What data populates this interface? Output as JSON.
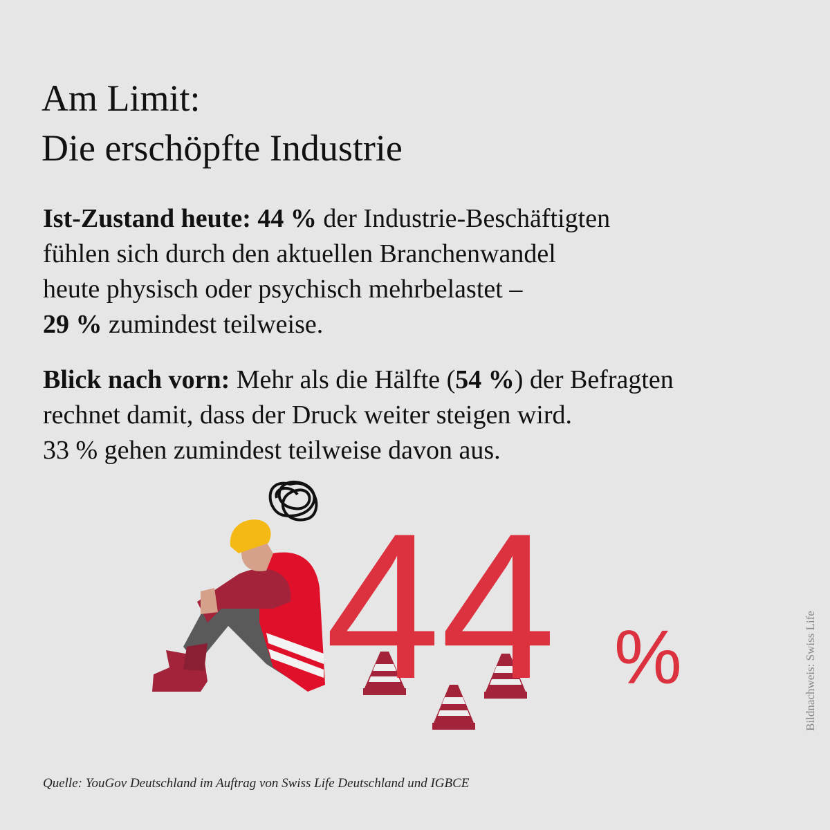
{
  "header": {
    "title": [
      "Am Limit:",
      "Die erschöpfte Industrie"
    ]
  },
  "paragraphs": [
    {
      "lines": [
        [
          {
            "text": "Ist-Zustand heute: 44 %",
            "bold": true
          },
          {
            "text": " der Industrie-Beschäftigten"
          }
        ],
        [
          {
            "text": "fühlen sich durch den aktuellen Branchenwandel"
          }
        ],
        [
          {
            "text": "heute physisch oder psychisch mehrbelastet –"
          }
        ],
        [
          {
            "text": "29 %",
            "bold": true
          },
          {
            "text": " zumindest teilweise."
          }
        ]
      ]
    },
    {
      "lines": [
        [
          {
            "text": "Blick nach vorn:",
            "bold": true
          },
          {
            "text": " Mehr als die Hälfte ("
          },
          {
            "text": "54 %",
            "bold": true
          },
          {
            "text": ") der Befragten"
          }
        ],
        [
          {
            "text": "rechnet damit, dass der Druck weiter steigen wird."
          }
        ],
        [
          {
            "text": "33 % gehen zumindest teilweise davon aus."
          }
        ]
      ]
    }
  ],
  "figure": {
    "number": "44",
    "unit": "%"
  },
  "credit": "Bildnachweis: Swiss Life",
  "source": "Quelle: YouGov Deutschland im Auftrag von Swiss Life Deutschland und IGBCE"
}
